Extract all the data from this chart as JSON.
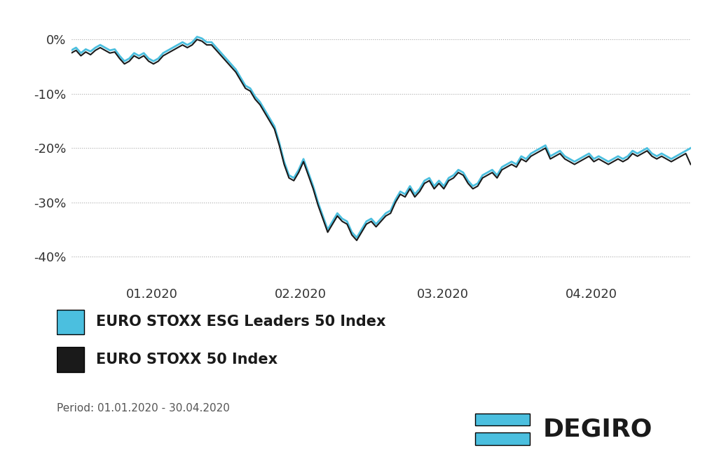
{
  "title": "",
  "background_color": "#ffffff",
  "grid_color": "#aaaaaa",
  "esg_color": "#4bbfdf",
  "stoxx_color": "#1a1a1a",
  "esg_label": "EURO STOXX ESG Leaders 50 Index",
  "stoxx_label": "EURO STOXX 50 Index",
  "period_label": "Period: 01.01.2020 - 30.04.2020",
  "yticks": [
    0,
    -10,
    -20,
    -30,
    -40
  ],
  "ylim": [
    -44,
    3
  ],
  "xtick_labels": [
    "01.2020",
    "02.2020",
    "03.2020",
    "04.2020"
  ],
  "esg_data": [
    -2.0,
    -1.5,
    -2.5,
    -1.8,
    -2.2,
    -1.5,
    -1.0,
    -1.5,
    -2.0,
    -1.8,
    -3.0,
    -4.0,
    -3.5,
    -2.5,
    -3.0,
    -2.5,
    -3.5,
    -4.0,
    -3.5,
    -2.5,
    -2.0,
    -1.5,
    -1.0,
    -0.5,
    -1.0,
    -0.5,
    0.5,
    0.2,
    -0.5,
    -0.5,
    -1.5,
    -2.5,
    -3.5,
    -4.5,
    -5.5,
    -7.0,
    -8.5,
    -9.0,
    -10.5,
    -11.5,
    -13.0,
    -14.5,
    -16.0,
    -19.0,
    -22.5,
    -25.0,
    -25.5,
    -24.0,
    -22.0,
    -24.5,
    -27.0,
    -30.0,
    -32.5,
    -35.0,
    -33.5,
    -32.0,
    -33.0,
    -33.5,
    -35.5,
    -36.5,
    -35.0,
    -33.5,
    -33.0,
    -34.0,
    -33.0,
    -32.0,
    -31.5,
    -29.5,
    -28.0,
    -28.5,
    -27.0,
    -28.5,
    -27.5,
    -26.0,
    -25.5,
    -27.0,
    -26.0,
    -27.0,
    -25.5,
    -25.0,
    -24.0,
    -24.5,
    -26.0,
    -27.0,
    -26.5,
    -25.0,
    -24.5,
    -24.0,
    -25.0,
    -23.5,
    -23.0,
    -22.5,
    -23.0,
    -21.5,
    -22.0,
    -21.0,
    -20.5,
    -20.0,
    -19.5,
    -21.5,
    -21.0,
    -20.5,
    -21.5,
    -22.0,
    -22.5,
    -22.0,
    -21.5,
    -21.0,
    -22.0,
    -21.5,
    -22.0,
    -22.5,
    -22.0,
    -21.5,
    -22.0,
    -21.5,
    -20.5,
    -21.0,
    -20.5,
    -20.0,
    -21.0,
    -21.5,
    -21.0,
    -21.5,
    -22.0,
    -21.5,
    -21.0,
    -20.5,
    -20.0
  ],
  "stoxx_data": [
    -2.5,
    -2.0,
    -3.0,
    -2.3,
    -2.8,
    -2.0,
    -1.5,
    -2.0,
    -2.5,
    -2.3,
    -3.5,
    -4.5,
    -4.0,
    -3.0,
    -3.5,
    -3.0,
    -4.0,
    -4.5,
    -4.0,
    -3.0,
    -2.5,
    -2.0,
    -1.5,
    -1.0,
    -1.5,
    -1.0,
    0.0,
    -0.3,
    -1.0,
    -1.0,
    -2.0,
    -3.0,
    -4.0,
    -5.0,
    -6.0,
    -7.5,
    -9.0,
    -9.5,
    -11.0,
    -12.0,
    -13.5,
    -15.0,
    -16.5,
    -19.5,
    -23.0,
    -25.5,
    -26.0,
    -24.5,
    -22.5,
    -25.0,
    -27.5,
    -30.5,
    -33.0,
    -35.5,
    -34.0,
    -32.5,
    -33.5,
    -34.0,
    -36.0,
    -37.0,
    -35.5,
    -34.0,
    -33.5,
    -34.5,
    -33.5,
    -32.5,
    -32.0,
    -30.0,
    -28.5,
    -29.0,
    -27.5,
    -29.0,
    -28.0,
    -26.5,
    -26.0,
    -27.5,
    -26.5,
    -27.5,
    -26.0,
    -25.5,
    -24.5,
    -25.0,
    -26.5,
    -27.5,
    -27.0,
    -25.5,
    -25.0,
    -24.5,
    -25.5,
    -24.0,
    -23.5,
    -23.0,
    -23.5,
    -22.0,
    -22.5,
    -21.5,
    -21.0,
    -20.5,
    -20.0,
    -22.0,
    -21.5,
    -21.0,
    -22.0,
    -22.5,
    -23.0,
    -22.5,
    -22.0,
    -21.5,
    -22.5,
    -22.0,
    -22.5,
    -23.0,
    -22.5,
    -22.0,
    -22.5,
    -22.0,
    -21.0,
    -21.5,
    -21.0,
    -20.5,
    -21.5,
    -22.0,
    -21.5,
    -22.0,
    -22.5,
    -22.0,
    -21.5,
    -21.0,
    -23.0
  ],
  "degiro_text": "DEGIRO",
  "degiro_color": "#1a1a1a",
  "degiro_bar_color": "#4bbfdf"
}
